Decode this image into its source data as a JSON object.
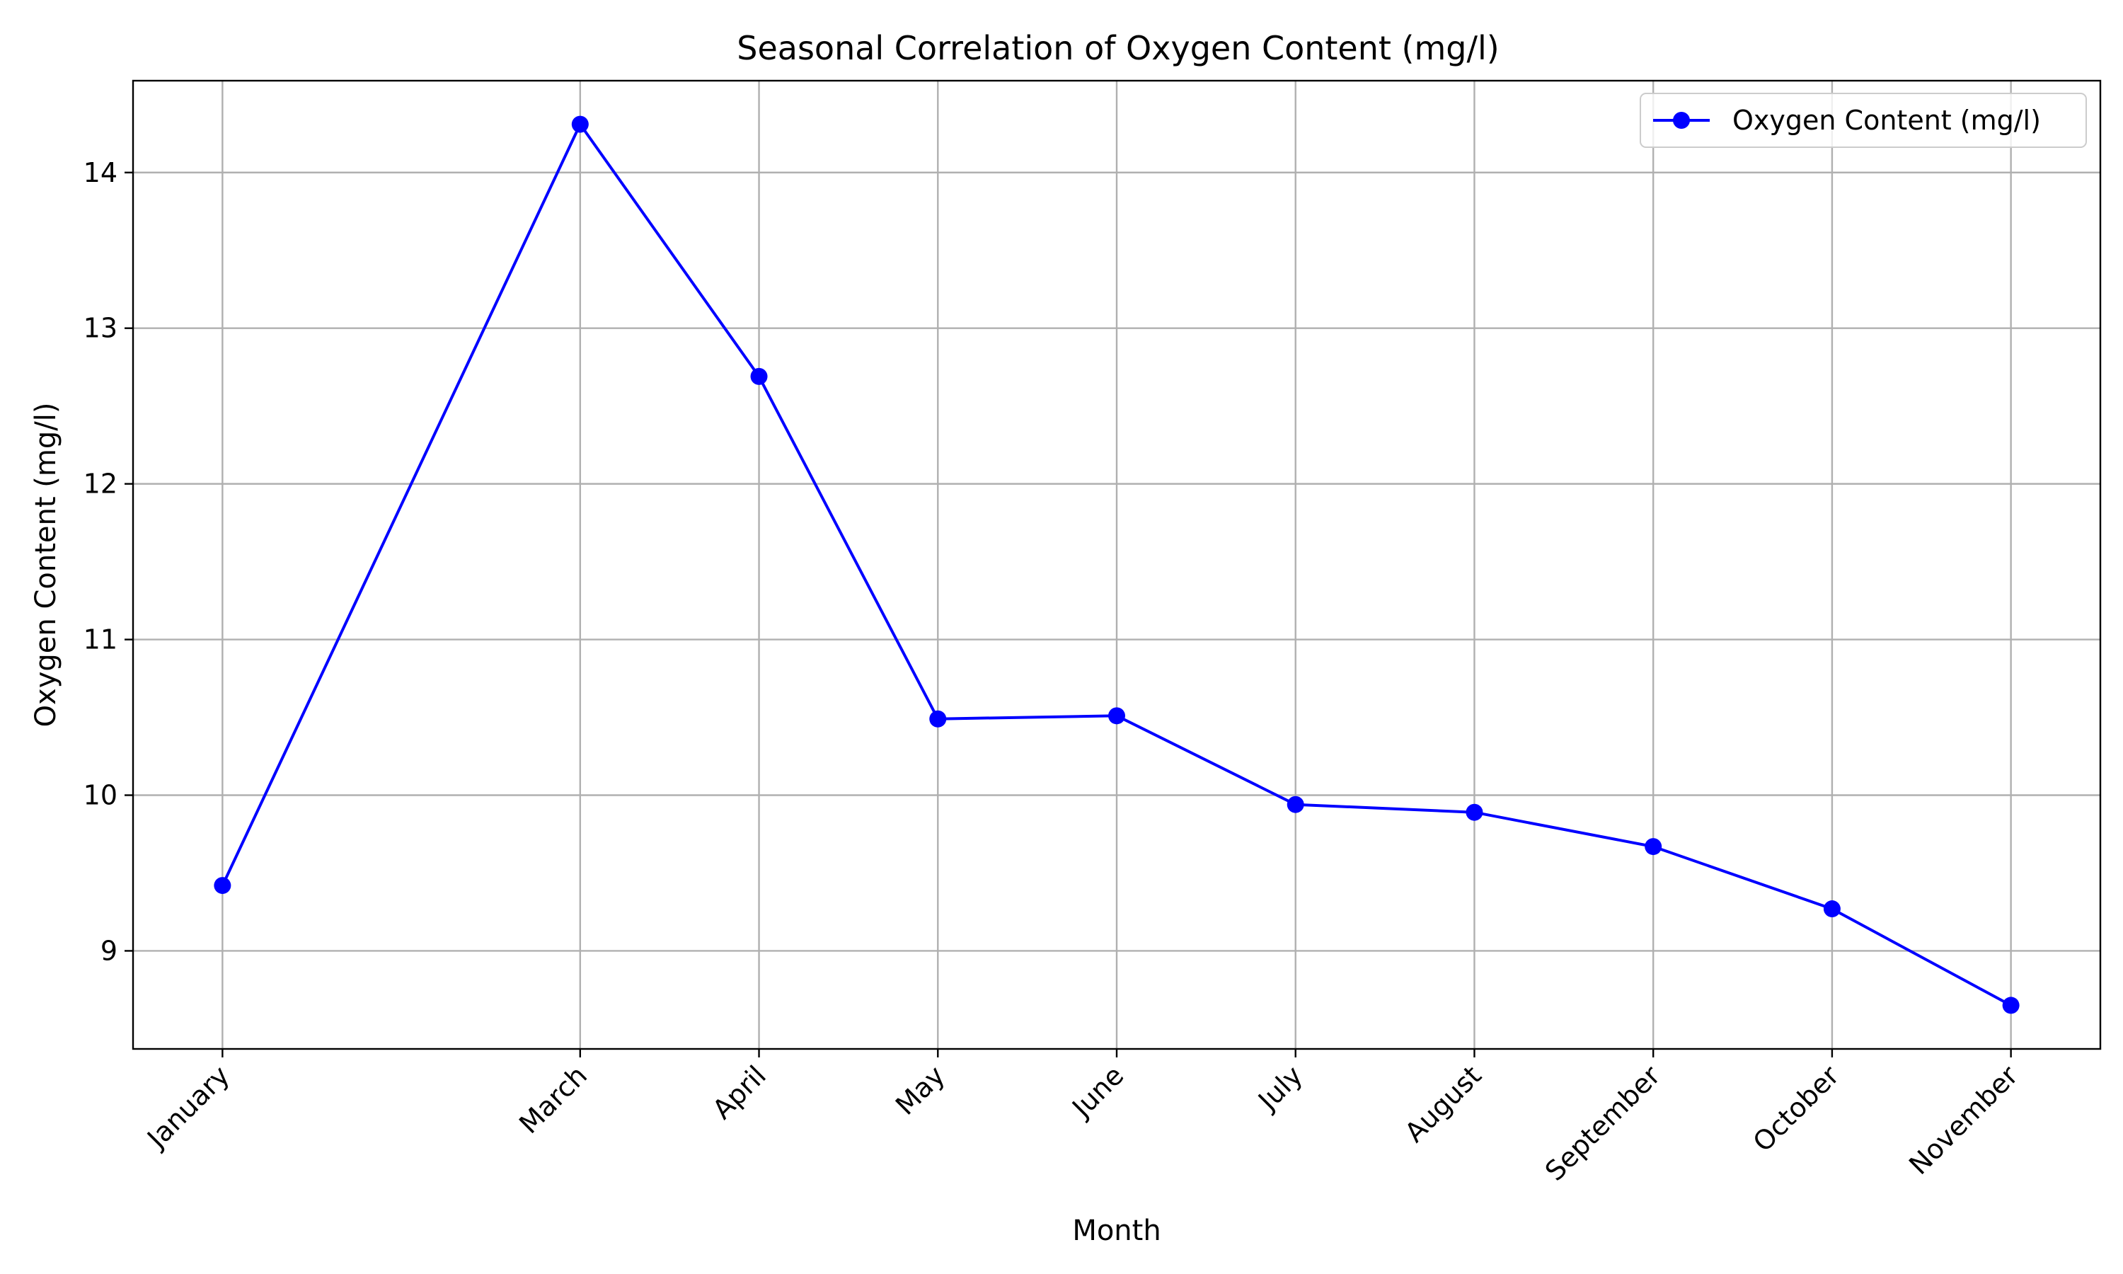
{
  "chart_data": {
    "type": "line",
    "title": "Seasonal Correlation of Oxygen Content (mg/l)",
    "xlabel": "Month",
    "ylabel": "Oxygen Content (mg/l)",
    "categories": [
      "January",
      "March",
      "April",
      "May",
      "June",
      "July",
      "August",
      "September",
      "October",
      "November"
    ],
    "month_index": [
      1,
      3,
      4,
      5,
      6,
      7,
      8,
      9,
      10,
      11
    ],
    "xlim": [
      0.5,
      11.5
    ],
    "ylim": [
      8.37,
      14.59
    ],
    "yticks": [
      9,
      10,
      11,
      12,
      13,
      14
    ],
    "grid": true,
    "legend_position": "top-right",
    "series": [
      {
        "name": "Oxygen Content (mg/l)",
        "color": "#0000ff",
        "marker": "circle",
        "values": [
          9.42,
          14.31,
          12.69,
          10.49,
          10.51,
          9.94,
          9.89,
          9.67,
          9.27,
          8.65
        ]
      }
    ]
  }
}
